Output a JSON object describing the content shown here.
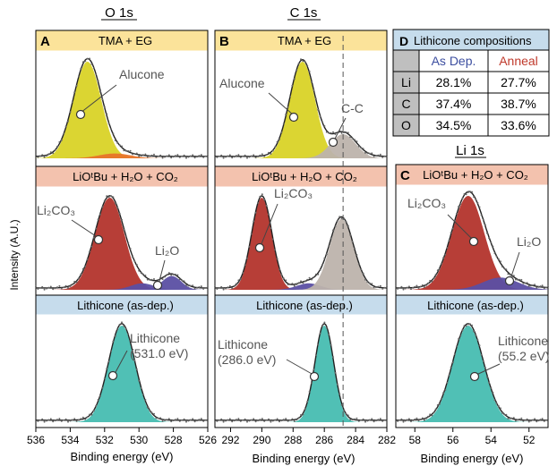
{
  "figure": {
    "ylabel": "Intensity (A.U.)",
    "xlabel": "Binding energy (eV)"
  },
  "colors": {
    "alucone": "#d9d327",
    "li2co3": "#b3342c",
    "li2o": "#5b4fa3",
    "lithicone": "#47bdb1",
    "cc": "#bdb3ac",
    "orange": "#e8742a",
    "header_yellow": "#fbe39a",
    "header_salmon": "#f3c2ae",
    "header_blue": "#c6dcec",
    "anneal_red": "#c0392b",
    "asdep_blue": "#3d4fa0",
    "table_gray": "#bfbfbf"
  },
  "column_titles": {
    "o1s": "O 1s",
    "c1s": "C 1s",
    "li1s": "Li 1s"
  },
  "panel_letters": {
    "a": "A",
    "b": "B",
    "c": "C",
    "d": "D"
  },
  "row_headers": {
    "tma": "TMA + EG",
    "liotbu": "LiOᵗBu + H₂O + CO₂",
    "lithicone": "Lithicone (as-dep.)"
  },
  "labels": {
    "alucone": "Alucone",
    "li2co3": "Li₂CO₃",
    "li2o": "Li₂O",
    "cc": "C-C",
    "lithicone_o": [
      "Lithicone",
      "(531.0 eV)"
    ],
    "lithicone_c": [
      "Lithicone",
      "(286.0 eV)"
    ],
    "lithicone_li": [
      "Lithicone",
      "(55.2 eV)"
    ]
  },
  "table": {
    "title": "Lithicone compositions",
    "col_headers": [
      "As Dep.",
      "Anneal"
    ],
    "rows": [
      {
        "element": "Li",
        "asdep": "28.1%",
        "anneal": "27.7%"
      },
      {
        "element": "C",
        "asdep": "37.4%",
        "anneal": "38.7%"
      },
      {
        "element": "O",
        "asdep": "34.5%",
        "anneal": "33.6%"
      }
    ]
  },
  "chart_data": [
    {
      "type": "area",
      "panel": "O 1s",
      "xlabel": "Binding energy (eV)",
      "xlim": [
        536,
        526
      ],
      "xticks": [
        536,
        534,
        532,
        530,
        528,
        526
      ],
      "rows": [
        {
          "header": "TMA + EG",
          "peaks": [
            {
              "name": "Alucone",
              "center": 533.0,
              "fwhm": 1.9,
              "height": 1.0,
              "color": "alucone"
            },
            {
              "name": "",
              "center": 531.4,
              "fwhm": 2.2,
              "height": 0.05,
              "color": "orange"
            }
          ]
        },
        {
          "header": "LiOᵗBu + H₂O + CO₂",
          "peaks": [
            {
              "name": "Li₂CO₃",
              "center": 531.7,
              "fwhm": 2.0,
              "height": 1.0,
              "color": "li2co3"
            },
            {
              "name": "",
              "center": 529.8,
              "fwhm": 1.6,
              "height": 0.07,
              "color": "li2o"
            },
            {
              "name": "Li₂O",
              "center": 528.1,
              "fwhm": 1.3,
              "height": 0.15,
              "color": "li2o"
            }
          ]
        },
        {
          "header": "Lithicone (as-dep.)",
          "peaks": [
            {
              "name": "Lithicone (531.0 eV)",
              "center": 531.0,
              "fwhm": 1.8,
              "height": 1.0,
              "color": "lithicone"
            }
          ]
        }
      ]
    },
    {
      "type": "area",
      "panel": "C 1s",
      "xlabel": "Binding energy (eV)",
      "xlim": [
        293,
        282
      ],
      "xticks": [
        292,
        290,
        288,
        286,
        284,
        282
      ],
      "reference_line": 284.8,
      "rows": [
        {
          "header": "TMA + EG",
          "peaks": [
            {
              "name": "Alucone",
              "center": 287.4,
              "fwhm": 1.9,
              "height": 1.0,
              "color": "alucone"
            },
            {
              "name": "C-C",
              "center": 284.8,
              "fwhm": 1.9,
              "height": 0.25,
              "color": "cc"
            }
          ]
        },
        {
          "header": "LiOᵗBu + H₂O + CO₂",
          "peaks": [
            {
              "name": "Li₂CO₃",
              "center": 290.0,
              "fwhm": 1.5,
              "height": 1.0,
              "color": "li2co3"
            },
            {
              "name": "",
              "center": 287.0,
              "fwhm": 1.8,
              "height": 0.07,
              "color": "li2o"
            },
            {
              "name": "",
              "center": 284.9,
              "fwhm": 1.8,
              "height": 0.77,
              "color": "cc"
            }
          ]
        },
        {
          "header": "Lithicone (as-dep.)",
          "peaks": [
            {
              "name": "Lithicone (286.0 eV)",
              "center": 286.0,
              "fwhm": 1.4,
              "height": 1.0,
              "color": "lithicone"
            }
          ]
        }
      ]
    },
    {
      "type": "area",
      "panel": "Li 1s",
      "xlabel": "Binding energy (eV)",
      "xlim": [
        59,
        51
      ],
      "xticks": [
        58,
        56,
        54,
        52
      ],
      "rows": [
        {
          "header": "LiOᵗBu + H₂O + CO₂",
          "peaks": [
            {
              "name": "Li₂CO₃",
              "center": 55.2,
              "fwhm": 2.0,
              "height": 1.0,
              "color": "li2co3"
            },
            {
              "name": "Li₂O",
              "center": 53.5,
              "fwhm": 2.2,
              "height": 0.13,
              "color": "li2o"
            }
          ]
        },
        {
          "header": "Lithicone (as-dep.)",
          "peaks": [
            {
              "name": "Lithicone (55.2 eV)",
              "center": 55.2,
              "fwhm": 1.9,
              "height": 1.0,
              "color": "lithicone"
            }
          ]
        }
      ]
    }
  ]
}
